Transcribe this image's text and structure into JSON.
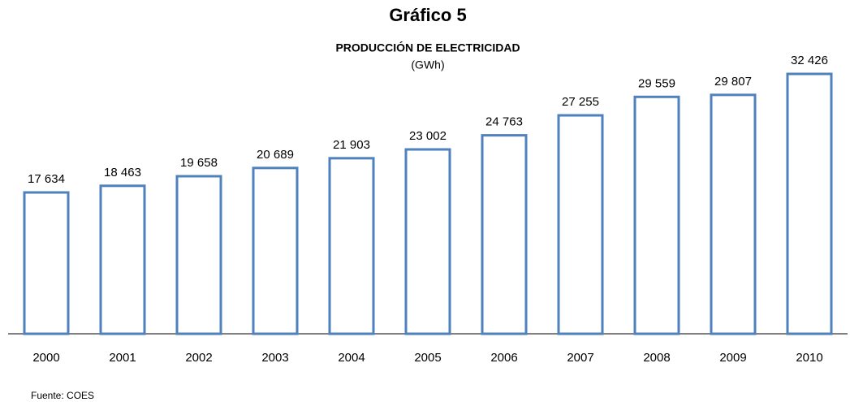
{
  "chart_data": {
    "type": "bar",
    "title": "Gráfico 5",
    "subtitle": "PRODUCCIÓN DE ELECTRICIDAD",
    "unit_label": "(GWh)",
    "source": "Fuente: COES",
    "categories": [
      "2000",
      "2001",
      "2002",
      "2003",
      "2004",
      "2005",
      "2006",
      "2007",
      "2008",
      "2009",
      "2010"
    ],
    "values": [
      17634,
      18463,
      19658,
      20689,
      21903,
      23002,
      24763,
      27255,
      29559,
      29807,
      32426
    ],
    "value_labels": [
      "17 634",
      "18 463",
      "19 658",
      "20 689",
      "21 903",
      "23 002",
      "24 763",
      "27 255",
      "29 559",
      "29 807",
      "32 426"
    ],
    "color": "#4f81bd"
  }
}
